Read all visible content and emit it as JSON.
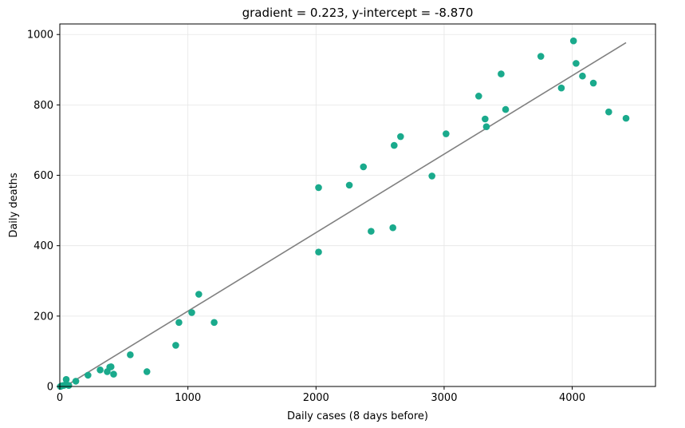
{
  "chart_data": {
    "type": "scatter",
    "title": "gradient = 0.223, y-intercept = -8.870",
    "xlabel": "Daily cases (8 days before)",
    "ylabel": "Daily deaths",
    "xlim": [
      0,
      4650
    ],
    "ylim": [
      0,
      1030
    ],
    "xticks": [
      0,
      1000,
      2000,
      3000,
      4000
    ],
    "yticks": [
      0,
      200,
      400,
      600,
      800,
      1000
    ],
    "grid": true,
    "colors": {
      "points": "#1aaa8c",
      "fit_line": "#808080"
    },
    "points": [
      {
        "x": 5,
        "y": 0
      },
      {
        "x": 15,
        "y": 2
      },
      {
        "x": 30,
        "y": 3
      },
      {
        "x": 45,
        "y": 5
      },
      {
        "x": 50,
        "y": 20
      },
      {
        "x": 70,
        "y": 3
      },
      {
        "x": 125,
        "y": 15
      },
      {
        "x": 220,
        "y": 32
      },
      {
        "x": 315,
        "y": 47
      },
      {
        "x": 370,
        "y": 42
      },
      {
        "x": 390,
        "y": 55
      },
      {
        "x": 400,
        "y": 56
      },
      {
        "x": 420,
        "y": 35
      },
      {
        "x": 550,
        "y": 90
      },
      {
        "x": 680,
        "y": 42
      },
      {
        "x": 905,
        "y": 117
      },
      {
        "x": 930,
        "y": 182
      },
      {
        "x": 1030,
        "y": 210
      },
      {
        "x": 1085,
        "y": 262
      },
      {
        "x": 1205,
        "y": 182
      },
      {
        "x": 2020,
        "y": 382
      },
      {
        "x": 2020,
        "y": 565
      },
      {
        "x": 2260,
        "y": 572
      },
      {
        "x": 2370,
        "y": 624
      },
      {
        "x": 2430,
        "y": 441
      },
      {
        "x": 2600,
        "y": 451
      },
      {
        "x": 2610,
        "y": 685
      },
      {
        "x": 2660,
        "y": 710
      },
      {
        "x": 2905,
        "y": 598
      },
      {
        "x": 3015,
        "y": 718
      },
      {
        "x": 3270,
        "y": 825
      },
      {
        "x": 3320,
        "y": 760
      },
      {
        "x": 3330,
        "y": 738
      },
      {
        "x": 3445,
        "y": 888
      },
      {
        "x": 3480,
        "y": 787
      },
      {
        "x": 3755,
        "y": 938
      },
      {
        "x": 3915,
        "y": 848
      },
      {
        "x": 4010,
        "y": 982
      },
      {
        "x": 4030,
        "y": 918
      },
      {
        "x": 4080,
        "y": 882
      },
      {
        "x": 4165,
        "y": 862
      },
      {
        "x": 4285,
        "y": 780
      },
      {
        "x": 4420,
        "y": 762
      }
    ],
    "fit_line": {
      "gradient": 0.223,
      "intercept": -8.87,
      "x_range": [
        5,
        4420
      ]
    }
  }
}
